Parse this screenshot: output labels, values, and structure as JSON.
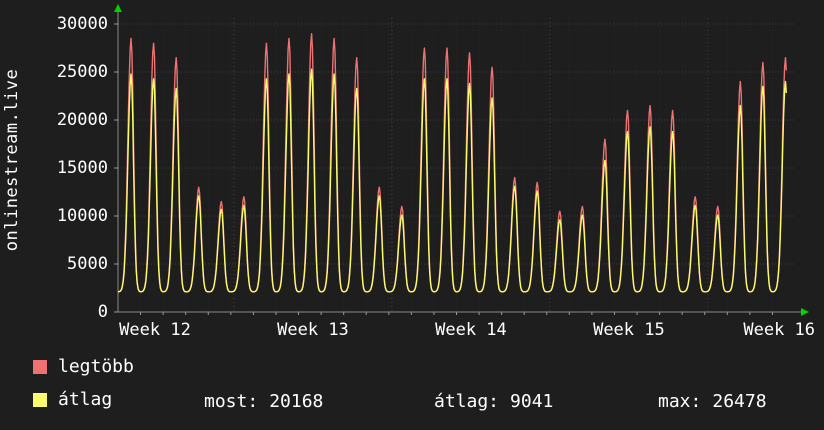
{
  "page": {
    "background": "#1e1e1e",
    "text_color": "#ffffff",
    "axis_arrow_color": "#00d400"
  },
  "chart_data": {
    "type": "line",
    "left_title": "onlinestream.live",
    "x_tick_labels": [
      "Week 12",
      "Week 13",
      "Week 14",
      "Week 15",
      "Week 16"
    ],
    "y_ticks": [
      0,
      5000,
      10000,
      15000,
      20000,
      25000,
      30000
    ],
    "ylim": [
      0,
      30000
    ],
    "days": 30,
    "baseline": 2100,
    "x_end_day": 29.65,
    "grid": true,
    "legend_position": "bottom",
    "series": [
      {
        "name": "legtöbb",
        "color": "#ee7272",
        "daily_peaks": [
          28500,
          28000,
          26500,
          13000,
          11500,
          12000,
          28000,
          28500,
          29000,
          28500,
          26500,
          13000,
          11000,
          27500,
          27500,
          27000,
          25500,
          14000,
          13500,
          10500,
          11000,
          18000,
          21000,
          21500,
          21000,
          12000,
          11000,
          24000,
          26000,
          26500
        ]
      },
      {
        "name": "átlag",
        "color": "#fbfb6e",
        "daily_peaks": [
          24800,
          24300,
          23300,
          12100,
          10700,
          11100,
          24300,
          24800,
          25300,
          24800,
          23300,
          12100,
          10100,
          24300,
          24300,
          23800,
          22300,
          13100,
          12600,
          9600,
          10100,
          15800,
          18800,
          19300,
          18800,
          11100,
          10100,
          21500,
          23500,
          24000
        ]
      }
    ],
    "stats": {
      "most": 20168,
      "atlag": 9041,
      "max": 26478
    }
  },
  "legend": {
    "series1_label": "legtöbb",
    "series2_label": "átlag"
  },
  "stats": [
    {
      "label": "most:",
      "value": "20168"
    },
    {
      "label": "átlag:",
      "value": "9041"
    },
    {
      "label": "max:",
      "value": "26478"
    }
  ]
}
